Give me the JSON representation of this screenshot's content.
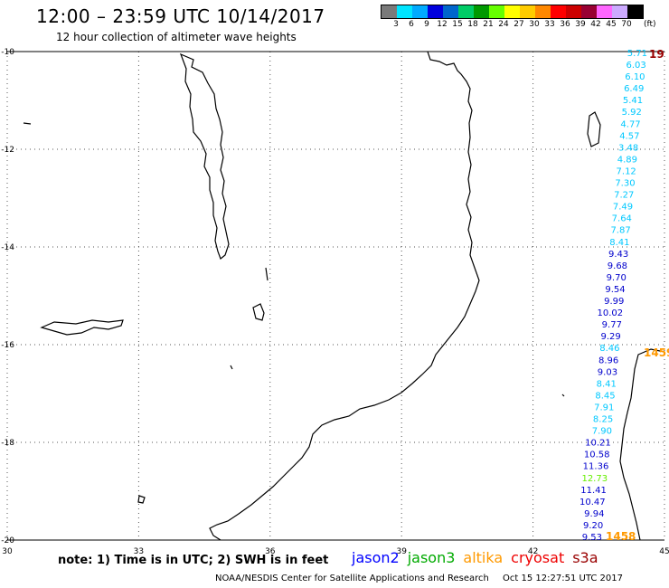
{
  "header": {
    "title": "12:00 – 23:59 UTC 10/14/2017",
    "subtitle": "12 hour collection of altimeter wave heights"
  },
  "scale": {
    "unit": "(ft)",
    "colors": [
      "#7a7a7a",
      "#00e5ff",
      "#00aaff",
      "#0000dd",
      "#0066cc",
      "#00cc66",
      "#009900",
      "#66ff00",
      "#ffff00",
      "#ffcc00",
      "#ff8800",
      "#ff0000",
      "#cc0000",
      "#990033",
      "#ff66ff",
      "#ccaaff",
      "#000000"
    ],
    "labels": [
      "3",
      "6",
      "9",
      "12",
      "15",
      "18",
      "21",
      "24",
      "27",
      "30",
      "33",
      "36",
      "39",
      "42",
      "45",
      "70"
    ]
  },
  "axes": {
    "lat_labels": [
      "-10",
      "-12",
      "-14",
      "-16",
      "-18",
      "-20"
    ],
    "lon_labels": [
      "30",
      "33",
      "36",
      "39",
      "42",
      "45"
    ]
  },
  "track": {
    "readings": [
      {
        "v": "5.71",
        "c": "#00c8ff"
      },
      {
        "v": "6.03",
        "c": "#00c8ff"
      },
      {
        "v": "6.10",
        "c": "#00c8ff"
      },
      {
        "v": "6.49",
        "c": "#00c8ff"
      },
      {
        "v": "5.41",
        "c": "#00c8ff"
      },
      {
        "v": "5.92",
        "c": "#00c8ff"
      },
      {
        "v": "4.77",
        "c": "#00c8ff"
      },
      {
        "v": "4.57",
        "c": "#00c8ff"
      },
      {
        "v": "3.48",
        "c": "#00c8ff"
      },
      {
        "v": "4.89",
        "c": "#00c8ff"
      },
      {
        "v": "7.12",
        "c": "#00c8ff"
      },
      {
        "v": "7.30",
        "c": "#00c8ff"
      },
      {
        "v": "7.27",
        "c": "#00c8ff"
      },
      {
        "v": "7.49",
        "c": "#00c8ff"
      },
      {
        "v": "7.64",
        "c": "#00c8ff"
      },
      {
        "v": "7.87",
        "c": "#00c8ff"
      },
      {
        "v": "8.41",
        "c": "#00c8ff"
      },
      {
        "v": "9.43",
        "c": "#0000cc"
      },
      {
        "v": "9.68",
        "c": "#0000cc"
      },
      {
        "v": "9.70",
        "c": "#0000cc"
      },
      {
        "v": "9.54",
        "c": "#0000cc"
      },
      {
        "v": "9.99",
        "c": "#0000cc"
      },
      {
        "v": "10.02",
        "c": "#0000cc"
      },
      {
        "v": "9.77",
        "c": "#0000cc"
      },
      {
        "v": "9.29",
        "c": "#0000cc"
      },
      {
        "v": "8.46",
        "c": "#00c8ff"
      },
      {
        "v": "8.96",
        "c": "#0000cc"
      },
      {
        "v": "9.03",
        "c": "#0000cc"
      },
      {
        "v": "8.41",
        "c": "#00c8ff"
      },
      {
        "v": "8.45",
        "c": "#00c8ff"
      },
      {
        "v": "7.91",
        "c": "#00c8ff"
      },
      {
        "v": "8.25",
        "c": "#00c8ff"
      },
      {
        "v": "7.90",
        "c": "#00c8ff"
      },
      {
        "v": "10.21",
        "c": "#0000cc"
      },
      {
        "v": "10.58",
        "c": "#0000cc"
      },
      {
        "v": "11.36",
        "c": "#0000cc"
      },
      {
        "v": "12.73",
        "c": "#66ee00"
      },
      {
        "v": "11.41",
        "c": "#0000cc"
      },
      {
        "v": "10.47",
        "c": "#0000cc"
      },
      {
        "v": "9.94",
        "c": "#0000cc"
      },
      {
        "v": "9.20",
        "c": "#0000cc"
      },
      {
        "v": "9.53",
        "c": "#0000cc"
      }
    ],
    "pass_times": [
      {
        "v": "19",
        "c": "#990000"
      },
      {
        "v": "1459",
        "c": "#ff9900"
      },
      {
        "v": "1458",
        "c": "#ff9900"
      }
    ]
  },
  "legend": {
    "note": "note: 1) Time is in UTC; 2) SWH is in feet",
    "satellites": [
      {
        "name": "jason2",
        "color": "#0000ff"
      },
      {
        "name": "jason3",
        "color": "#00aa00"
      },
      {
        "name": "altika",
        "color": "#ff9900"
      },
      {
        "name": "cryosat",
        "color": "#ee0000"
      },
      {
        "name": "s3a",
        "color": "#990000"
      }
    ]
  },
  "footer": {
    "center": "NOAA/NESDIS Center for Satellite Applications and Research",
    "timestamp": "Oct 15 12:27:51 UTC 2017"
  }
}
